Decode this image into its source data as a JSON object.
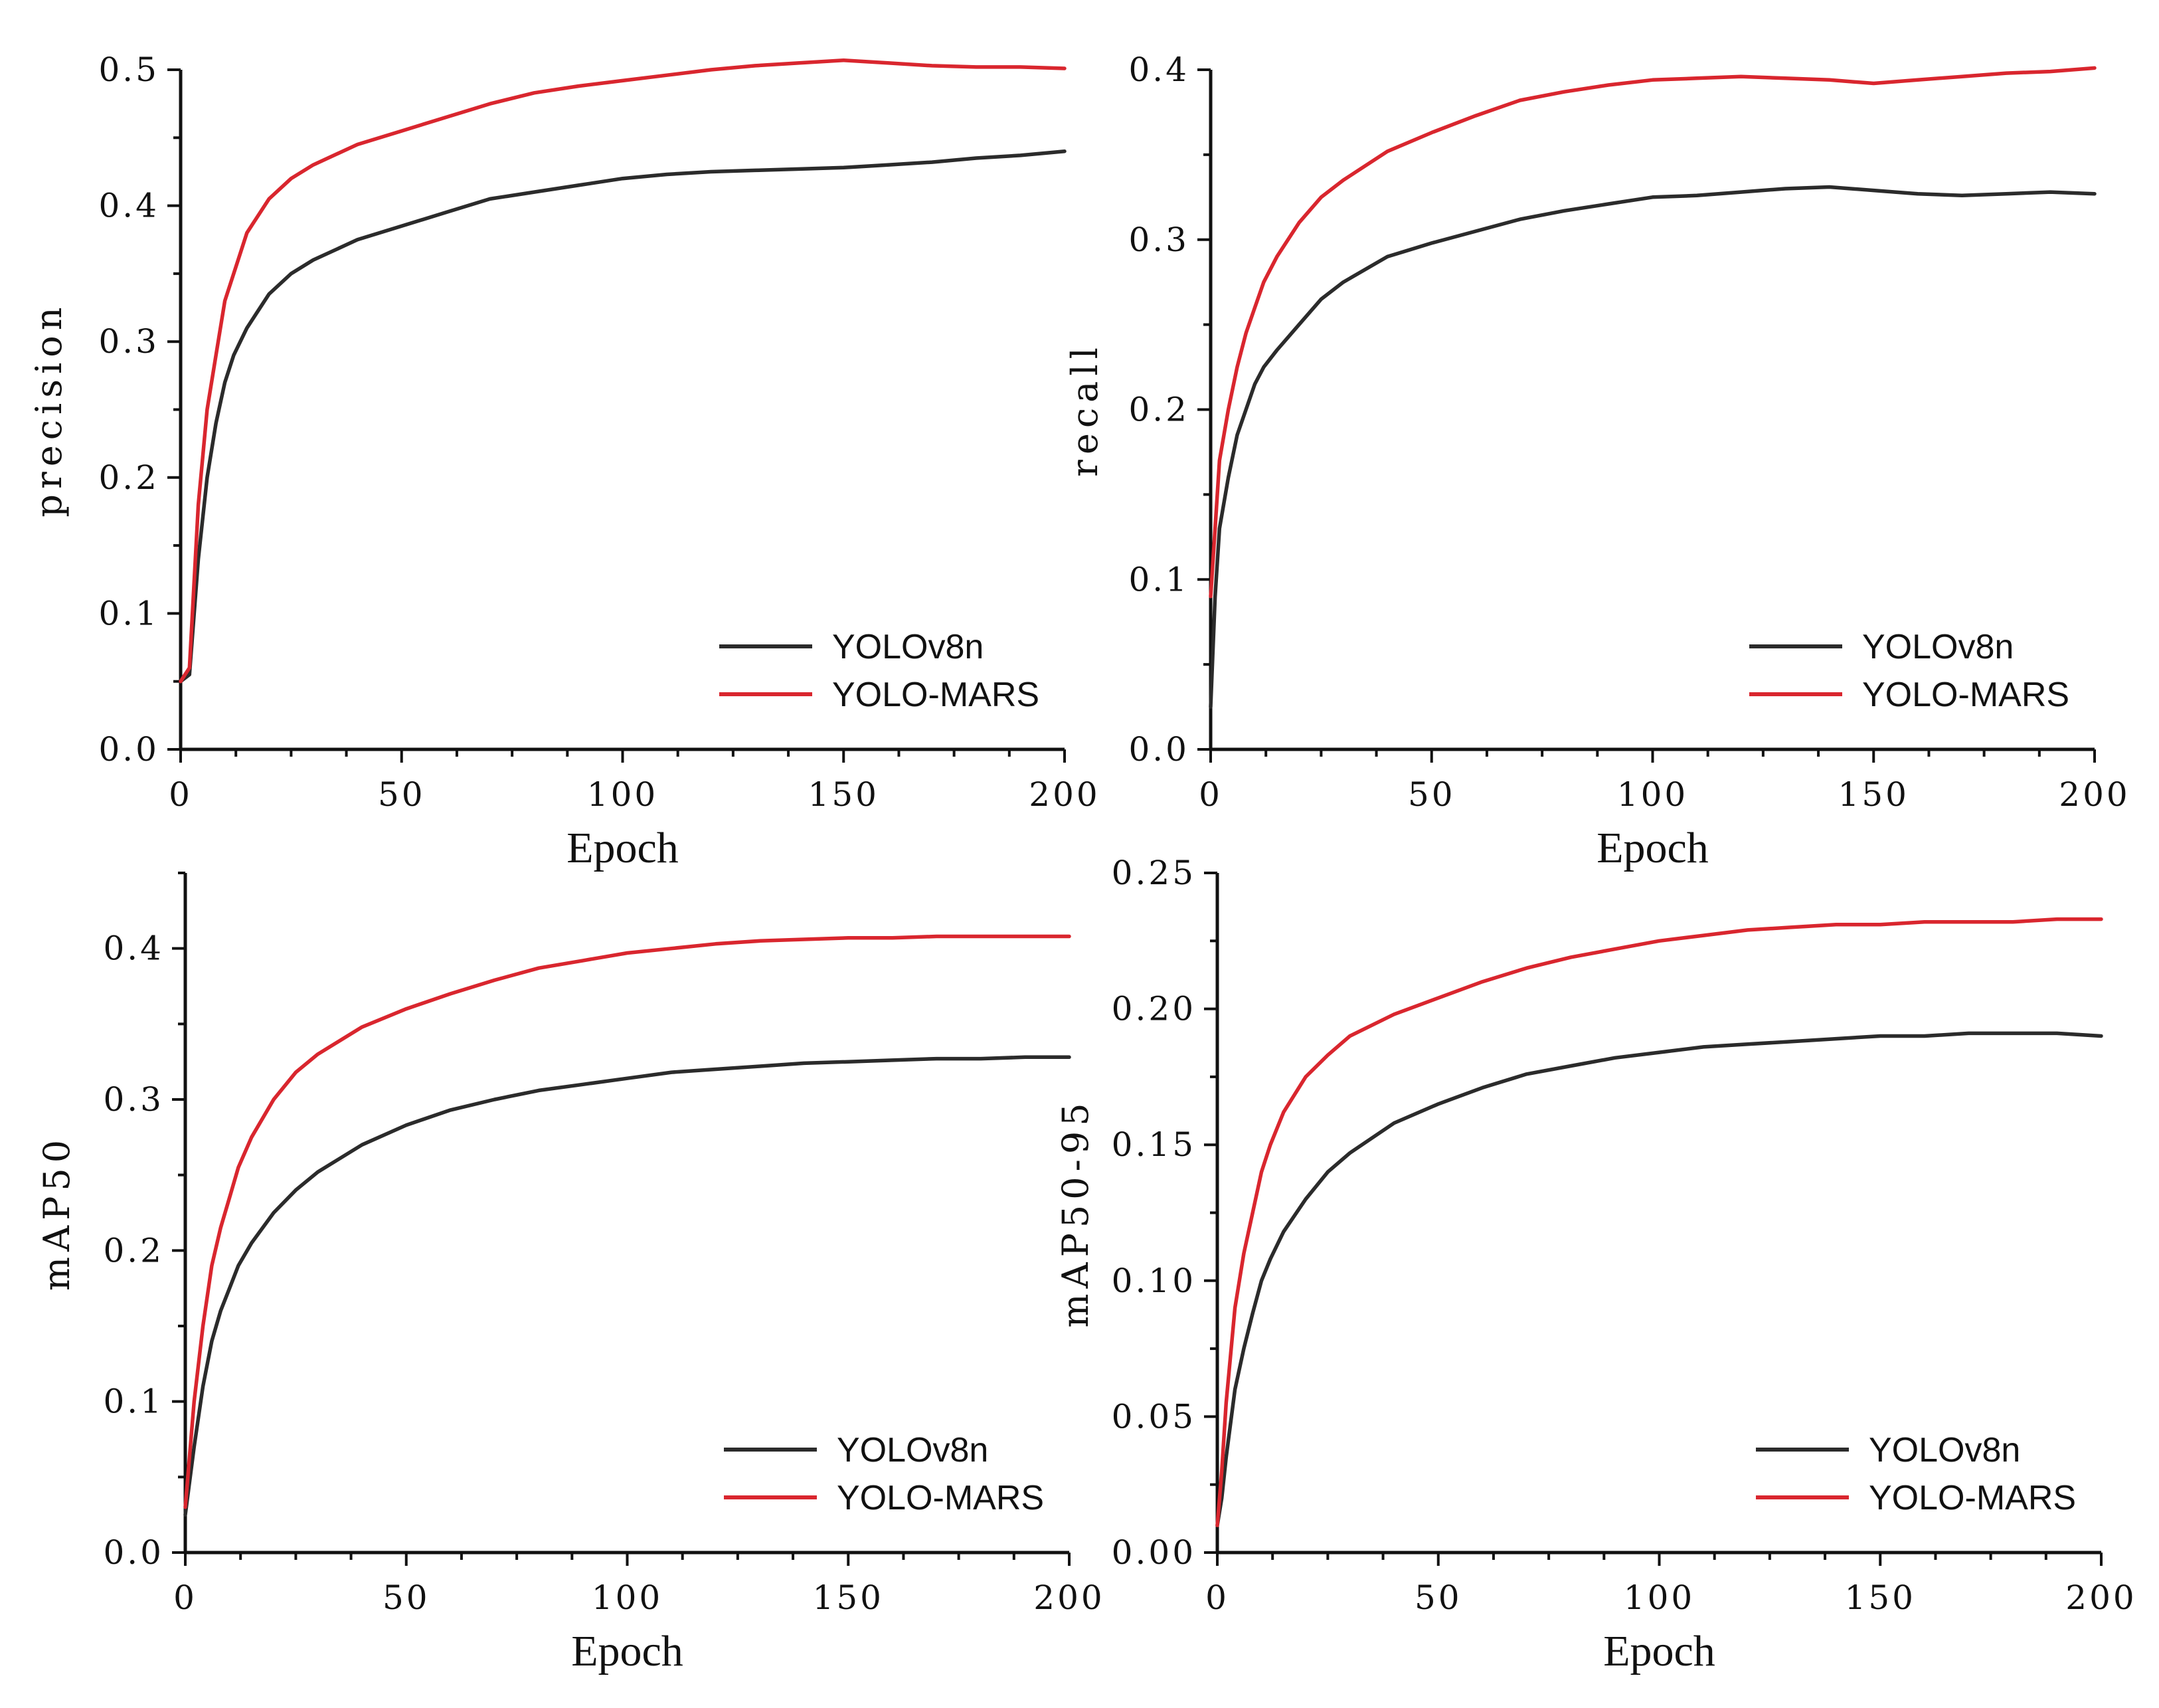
{
  "colors": {
    "yolov8n": "#2b2b2b",
    "yolo_mars": "#d9262e",
    "axis": "#111111"
  },
  "chart_data": [
    {
      "type": "line",
      "ylabel": "precision",
      "xlabel": "Epoch",
      "xlim": [
        0,
        200
      ],
      "ylim": [
        0,
        0.5
      ],
      "xticks": [
        "0",
        "50",
        "100",
        "150",
        "200"
      ],
      "yticks": [
        "0.0",
        "0.1",
        "0.2",
        "0.3",
        "0.4",
        "0.5"
      ],
      "legend": [
        "YOLOv8n",
        "YOLO-MARS"
      ],
      "legend_position": "lower-right",
      "series": [
        {
          "name": "YOLOv8n",
          "color": "#2b2b2b",
          "x": [
            0,
            2,
            4,
            6,
            8,
            10,
            12,
            15,
            20,
            25,
            30,
            40,
            50,
            60,
            70,
            80,
            90,
            100,
            110,
            120,
            130,
            140,
            150,
            160,
            170,
            180,
            190,
            200
          ],
          "values": [
            0.05,
            0.055,
            0.14,
            0.2,
            0.24,
            0.27,
            0.29,
            0.31,
            0.335,
            0.35,
            0.36,
            0.375,
            0.385,
            0.395,
            0.405,
            0.41,
            0.415,
            0.42,
            0.423,
            0.425,
            0.426,
            0.427,
            0.428,
            0.43,
            0.432,
            0.435,
            0.437,
            0.44
          ]
        },
        {
          "name": "YOLO-MARS",
          "color": "#d9262e",
          "x": [
            0,
            2,
            4,
            6,
            8,
            10,
            12,
            15,
            20,
            25,
            30,
            40,
            50,
            60,
            70,
            80,
            90,
            100,
            110,
            120,
            130,
            140,
            150,
            160,
            170,
            180,
            190,
            200
          ],
          "values": [
            0.05,
            0.06,
            0.18,
            0.25,
            0.29,
            0.33,
            0.35,
            0.38,
            0.405,
            0.42,
            0.43,
            0.445,
            0.455,
            0.465,
            0.475,
            0.483,
            0.488,
            0.492,
            0.496,
            0.5,
            0.503,
            0.505,
            0.507,
            0.505,
            0.503,
            0.502,
            0.502,
            0.501
          ]
        }
      ]
    },
    {
      "type": "line",
      "ylabel": "recall",
      "xlabel": "Epoch",
      "xlim": [
        0,
        200
      ],
      "ylim": [
        0,
        0.4
      ],
      "xticks": [
        "0",
        "50",
        "100",
        "150",
        "200"
      ],
      "yticks": [
        "0.0",
        "0.1",
        "0.2",
        "0.3",
        "0.4"
      ],
      "legend": [
        "YOLOv8n",
        "YOLO-MARS"
      ],
      "legend_position": "lower-right",
      "series": [
        {
          "name": "YOLOv8n",
          "color": "#2b2b2b",
          "x": [
            0,
            1,
            2,
            4,
            6,
            8,
            10,
            12,
            15,
            20,
            25,
            30,
            40,
            50,
            60,
            70,
            80,
            90,
            100,
            110,
            120,
            130,
            140,
            150,
            160,
            170,
            180,
            190,
            200
          ],
          "values": [
            0.025,
            0.09,
            0.13,
            0.16,
            0.185,
            0.2,
            0.215,
            0.225,
            0.235,
            0.25,
            0.265,
            0.275,
            0.29,
            0.298,
            0.305,
            0.312,
            0.317,
            0.321,
            0.325,
            0.326,
            0.328,
            0.33,
            0.331,
            0.329,
            0.327,
            0.326,
            0.327,
            0.328,
            0.327
          ]
        },
        {
          "name": "YOLO-MARS",
          "color": "#d9262e",
          "x": [
            0,
            1,
            2,
            4,
            6,
            8,
            10,
            12,
            15,
            20,
            25,
            30,
            40,
            50,
            60,
            70,
            80,
            90,
            100,
            110,
            120,
            130,
            140,
            150,
            160,
            170,
            180,
            190,
            200
          ],
          "values": [
            0.09,
            0.13,
            0.17,
            0.2,
            0.225,
            0.245,
            0.26,
            0.275,
            0.29,
            0.31,
            0.325,
            0.335,
            0.352,
            0.363,
            0.373,
            0.382,
            0.387,
            0.391,
            0.394,
            0.395,
            0.396,
            0.395,
            0.394,
            0.392,
            0.394,
            0.396,
            0.398,
            0.399,
            0.401
          ]
        }
      ]
    },
    {
      "type": "line",
      "ylabel": "mAP50",
      "xlabel": "Epoch",
      "xlim": [
        0,
        200
      ],
      "ylim": [
        0,
        0.45
      ],
      "xticks": [
        "0",
        "50",
        "100",
        "150",
        "200"
      ],
      "yticks": [
        "0.0",
        "0.1",
        "0.2",
        "0.3",
        "0.4"
      ],
      "legend": [
        "YOLOv8n",
        "YOLO-MARS"
      ],
      "legend_position": "lower-right",
      "series": [
        {
          "name": "YOLOv8n",
          "color": "#2b2b2b",
          "x": [
            0,
            2,
            4,
            6,
            8,
            10,
            12,
            15,
            20,
            25,
            30,
            40,
            50,
            60,
            70,
            80,
            90,
            100,
            110,
            120,
            130,
            140,
            150,
            160,
            170,
            180,
            190,
            200
          ],
          "values": [
            0.025,
            0.07,
            0.11,
            0.14,
            0.16,
            0.175,
            0.19,
            0.205,
            0.225,
            0.24,
            0.252,
            0.27,
            0.283,
            0.293,
            0.3,
            0.306,
            0.31,
            0.314,
            0.318,
            0.32,
            0.322,
            0.324,
            0.325,
            0.326,
            0.327,
            0.327,
            0.328,
            0.328
          ]
        },
        {
          "name": "YOLO-MARS",
          "color": "#d9262e",
          "x": [
            0,
            2,
            4,
            6,
            8,
            10,
            12,
            15,
            20,
            25,
            30,
            40,
            50,
            60,
            70,
            80,
            90,
            100,
            110,
            120,
            130,
            140,
            150,
            160,
            170,
            180,
            190,
            200
          ],
          "values": [
            0.03,
            0.1,
            0.15,
            0.19,
            0.215,
            0.235,
            0.255,
            0.275,
            0.3,
            0.318,
            0.33,
            0.348,
            0.36,
            0.37,
            0.379,
            0.387,
            0.392,
            0.397,
            0.4,
            0.403,
            0.405,
            0.406,
            0.407,
            0.407,
            0.408,
            0.408,
            0.408,
            0.408
          ]
        }
      ]
    },
    {
      "type": "line",
      "ylabel": "mAP50-95",
      "xlabel": "Epoch",
      "xlim": [
        0,
        200
      ],
      "ylim": [
        0,
        0.25
      ],
      "xticks": [
        "0",
        "50",
        "100",
        "150",
        "200"
      ],
      "yticks": [
        "0.00",
        "0.05",
        "0.10",
        "0.15",
        "0.20",
        "0.25"
      ],
      "legend": [
        "YOLOv8n",
        "YOLO-MARS"
      ],
      "legend_position": "lower-right",
      "series": [
        {
          "name": "YOLOv8n",
          "color": "#2b2b2b",
          "x": [
            0,
            1,
            2,
            4,
            6,
            8,
            10,
            12,
            15,
            20,
            25,
            30,
            40,
            50,
            60,
            70,
            80,
            90,
            100,
            110,
            120,
            130,
            140,
            150,
            160,
            170,
            180,
            190,
            200
          ],
          "values": [
            0.01,
            0.02,
            0.035,
            0.06,
            0.075,
            0.088,
            0.1,
            0.108,
            0.118,
            0.13,
            0.14,
            0.147,
            0.158,
            0.165,
            0.171,
            0.176,
            0.179,
            0.182,
            0.184,
            0.186,
            0.187,
            0.188,
            0.189,
            0.19,
            0.19,
            0.191,
            0.191,
            0.191,
            0.19
          ]
        },
        {
          "name": "YOLO-MARS",
          "color": "#d9262e",
          "x": [
            0,
            1,
            2,
            4,
            6,
            8,
            10,
            12,
            15,
            20,
            25,
            30,
            40,
            50,
            60,
            70,
            80,
            90,
            100,
            110,
            120,
            130,
            140,
            150,
            160,
            170,
            180,
            190,
            200
          ],
          "values": [
            0.01,
            0.03,
            0.055,
            0.09,
            0.11,
            0.125,
            0.14,
            0.15,
            0.162,
            0.175,
            0.183,
            0.19,
            0.198,
            0.204,
            0.21,
            0.215,
            0.219,
            0.222,
            0.225,
            0.227,
            0.229,
            0.23,
            0.231,
            0.231,
            0.232,
            0.232,
            0.232,
            0.233,
            0.233
          ]
        }
      ]
    }
  ]
}
